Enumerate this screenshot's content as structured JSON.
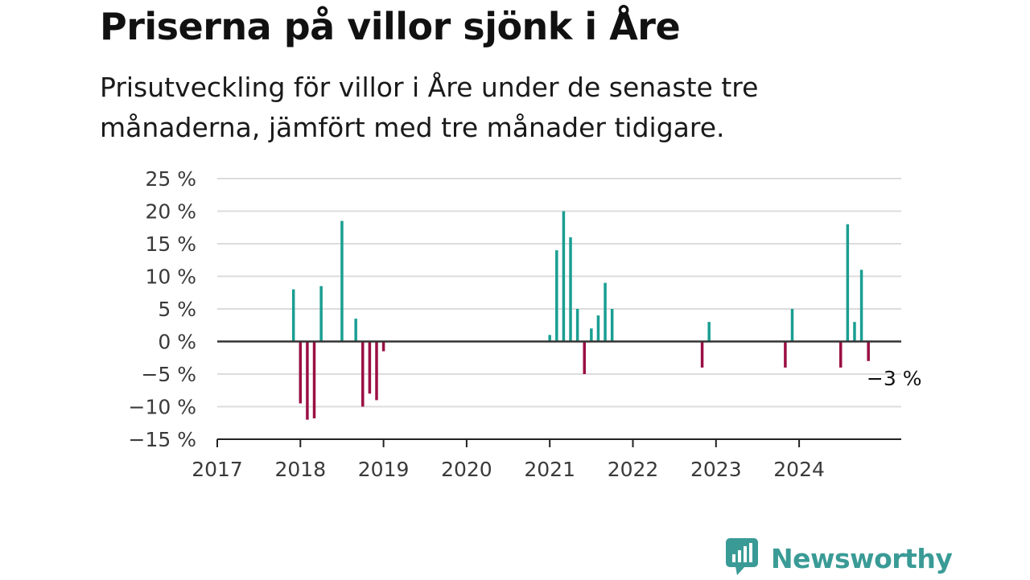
{
  "header": {
    "title": "Priserna på villor sjönk i Åre",
    "subtitle": "Prisutveckling för villor i Åre under de senaste tre månaderna, jämfört med tre månader tidigare."
  },
  "brand": {
    "name": "Newsworthy",
    "icon": "newsworthy-logo-icon",
    "color": "#3a9b96"
  },
  "colors": {
    "positive": "#1a9e92",
    "negative": "#9a0f44",
    "grid": "#dcdcdc",
    "axis": "#222222"
  },
  "chart_data": {
    "type": "bar",
    "title": "Priserna på villor sjönk i Åre",
    "subtitle": "Prisutveckling för villor i Åre under de senaste tre månaderna, jämfört med tre månader tidigare.",
    "xlabel": "",
    "ylabel": "",
    "x_ticks": [
      "2017",
      "2018",
      "2019",
      "2020",
      "2021",
      "2022",
      "2023",
      "2024"
    ],
    "y_ticks": [
      {
        "value": 25,
        "label": "25 %"
      },
      {
        "value": 20,
        "label": "20 %"
      },
      {
        "value": 15,
        "label": "15 %"
      },
      {
        "value": 10,
        "label": "10 %"
      },
      {
        "value": 5,
        "label": "5 %"
      },
      {
        "value": 0,
        "label": "0 %"
      },
      {
        "value": -5,
        "label": "−5 %"
      },
      {
        "value": -10,
        "label": "−10 %"
      },
      {
        "value": -15,
        "label": "−15 %"
      }
    ],
    "ylim": [
      -15,
      25
    ],
    "xlim": [
      "2017-01",
      "2025-02"
    ],
    "grid": true,
    "legend": "none",
    "series": [
      {
        "points": [
          {
            "date": "2017-12",
            "value": 8
          },
          {
            "date": "2018-01",
            "value": -9.5
          },
          {
            "date": "2018-02",
            "value": -12
          },
          {
            "date": "2018-03",
            "value": -11.8
          },
          {
            "date": "2018-04",
            "value": 8.5
          },
          {
            "date": "2018-07",
            "value": 18.5
          },
          {
            "date": "2018-09",
            "value": 3.5
          },
          {
            "date": "2018-10",
            "value": -10
          },
          {
            "date": "2018-11",
            "value": -8
          },
          {
            "date": "2018-12",
            "value": -9
          },
          {
            "date": "2019-01",
            "value": -1.5
          },
          {
            "date": "2021-01",
            "value": 1
          },
          {
            "date": "2021-02",
            "value": 14
          },
          {
            "date": "2021-03",
            "value": 20
          },
          {
            "date": "2021-04",
            "value": 16
          },
          {
            "date": "2021-05",
            "value": 5
          },
          {
            "date": "2021-06",
            "value": -5
          },
          {
            "date": "2021-07",
            "value": 2
          },
          {
            "date": "2021-08",
            "value": 4
          },
          {
            "date": "2021-09",
            "value": 9
          },
          {
            "date": "2021-10",
            "value": 5
          },
          {
            "date": "2022-11",
            "value": -4
          },
          {
            "date": "2022-12",
            "value": 3
          },
          {
            "date": "2023-11",
            "value": -4
          },
          {
            "date": "2023-12",
            "value": 5
          },
          {
            "date": "2024-07",
            "value": -4
          },
          {
            "date": "2024-08",
            "value": 18
          },
          {
            "date": "2024-09",
            "value": 3
          },
          {
            "date": "2024-10",
            "value": 11
          },
          {
            "date": "2024-11",
            "value": -3
          }
        ]
      }
    ],
    "annotations": [
      {
        "date": "2024-11",
        "value": -3,
        "text": "−3 %"
      }
    ]
  }
}
